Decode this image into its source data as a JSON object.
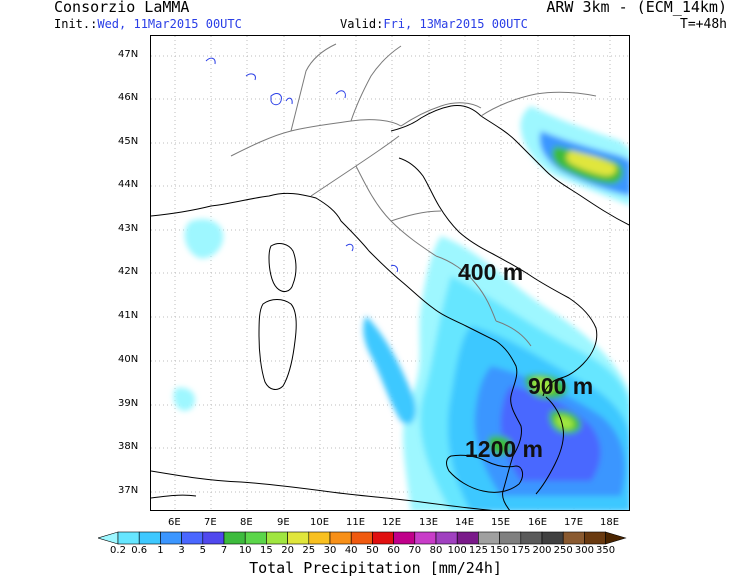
{
  "header": {
    "title": "Consorzio LaMMA",
    "init_label": "Init.:",
    "init_value": "Wed, 11Mar2015 00UTC",
    "valid_label": "Valid:",
    "valid_value": "Fri, 13Mar2015 00UTC",
    "model": "ARW 3km - (ECM_14km)",
    "step": "T=+48h"
  },
  "axes": {
    "latitude_labels": [
      "47N",
      "46N",
      "45N",
      "44N",
      "43N",
      "42N",
      "41N",
      "40N",
      "39N",
      "38N",
      "37N"
    ],
    "longitude_labels": [
      "6E",
      "7E",
      "8E",
      "9E",
      "10E",
      "11E",
      "12E",
      "13E",
      "14E",
      "15E",
      "16E",
      "17E",
      "18E"
    ]
  },
  "annotations": [
    "400 m",
    "900 m",
    "1200 m"
  ],
  "colorbar": {
    "title": "Total Precipitation [mm/24h]",
    "levels": [
      "0.2",
      "0.6",
      "1",
      "3",
      "5",
      "7",
      "10",
      "15",
      "20",
      "25",
      "30",
      "40",
      "50",
      "60",
      "70",
      "80",
      "100",
      "125",
      "150",
      "175",
      "200",
      "250",
      "300",
      "350"
    ],
    "colors": [
      "#9ef7ff",
      "#66e6ff",
      "#3ec8ff",
      "#3b96ff",
      "#4a67ff",
      "#5048ee",
      "#3dbb3d",
      "#5bd64a",
      "#a0e640",
      "#e0e63c",
      "#f8c020",
      "#f89018",
      "#f05a10",
      "#e01010",
      "#c0008a",
      "#c83cc8",
      "#a040c0",
      "#7a1a8a",
      "#a0a0a0",
      "#808080",
      "#5a5a5a",
      "#404040",
      "#8a5a30",
      "#6a3a10",
      "#4a2400"
    ]
  }
}
